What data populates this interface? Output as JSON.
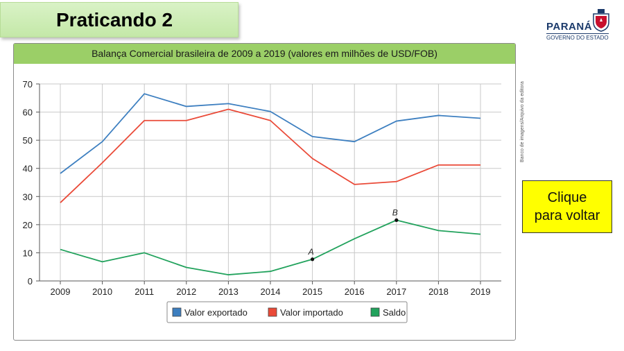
{
  "slide": {
    "title": "Praticando 2"
  },
  "logo": {
    "name": "PARANÁ",
    "subtitle": "GOVERNO DO ESTADO"
  },
  "back_button": {
    "line1": "Clique",
    "line2": "para voltar"
  },
  "credit": "Banco de imagens/Arquivo da editora",
  "colors": {
    "exportado": "#3d7fc0",
    "importado": "#ea4a38",
    "saldo": "#21a25c",
    "header": "#9bcf67",
    "grid": "#c8c8c8"
  },
  "chart_data": {
    "type": "line",
    "title": "Balança Comercial brasileira de 2009 a 2019 (valores em milhões de USD/FOB)",
    "xlabel": "",
    "ylabel": "",
    "ylim": [
      0,
      70
    ],
    "yticks": [
      0,
      10,
      20,
      30,
      40,
      50,
      60,
      70
    ],
    "x": [
      "2009",
      "2010",
      "2011",
      "2012",
      "2013",
      "2014",
      "2015",
      "2016",
      "2017",
      "2018",
      "2019"
    ],
    "grid": true,
    "legend_position": "bottom",
    "series": [
      {
        "name": "Valor exportado",
        "color": "#3d7fc0",
        "values": [
          38.2,
          49.5,
          66.5,
          62.0,
          63.0,
          60.2,
          51.3,
          49.5,
          56.8,
          58.8,
          57.8
        ]
      },
      {
        "name": "Valor importado",
        "color": "#ea4a38",
        "values": [
          27.8,
          42.0,
          57.0,
          57.0,
          61.0,
          57.0,
          43.5,
          34.3,
          35.3,
          41.2,
          41.2
        ]
      },
      {
        "name": "Saldo",
        "color": "#21a25c",
        "values": [
          11.2,
          6.8,
          10.0,
          4.8,
          2.2,
          3.4,
          7.7,
          15.0,
          21.6,
          17.9,
          16.6
        ]
      }
    ],
    "annotations": [
      {
        "label": "A",
        "series": "Saldo",
        "x": "2015",
        "y": 7.7
      },
      {
        "label": "B",
        "series": "Saldo",
        "x": "2017",
        "y": 21.6
      }
    ]
  }
}
